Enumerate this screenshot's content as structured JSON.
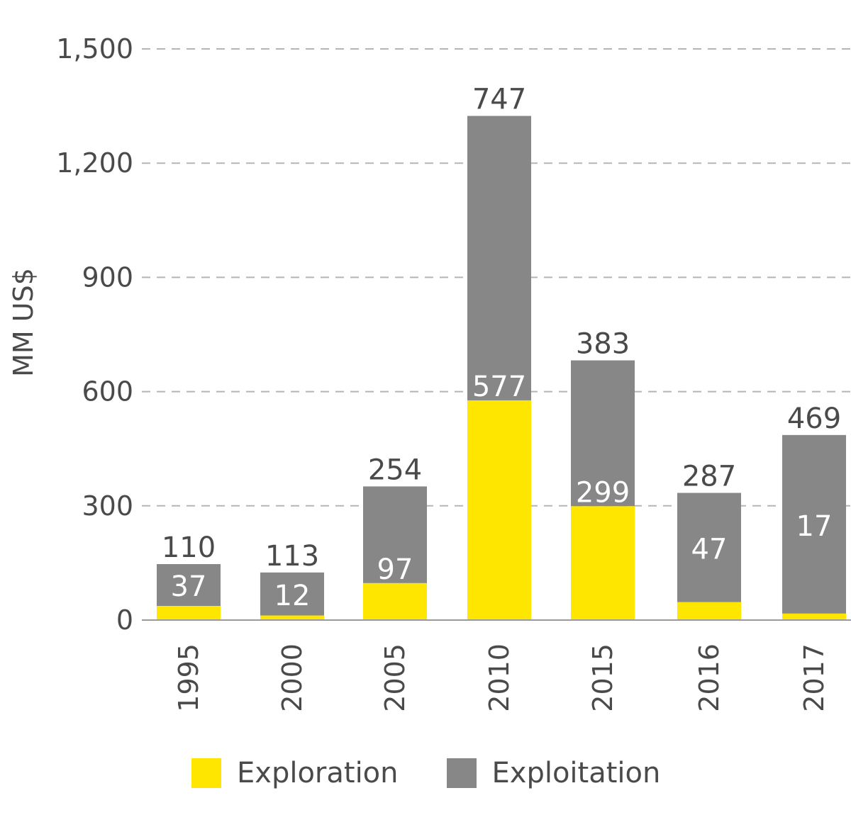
{
  "chart_data": {
    "type": "bar",
    "stacked": true,
    "title": "",
    "xlabel": "",
    "ylabel": "MM US$",
    "ylim": [
      0,
      1500
    ],
    "yticks": [
      0,
      300,
      600,
      900,
      1200,
      1500
    ],
    "ytick_labels": [
      "0",
      "300",
      "600",
      "900",
      "1,200",
      "1,500"
    ],
    "grid": "horizontal dashed",
    "categories": [
      "1995",
      "2000",
      "2005",
      "2010",
      "2015",
      "2016",
      "2017"
    ],
    "series": [
      {
        "name": "Exploration",
        "color": "#FFE600",
        "values": [
          37,
          12,
          97,
          577,
          299,
          47,
          17
        ]
      },
      {
        "name": "Exploitation",
        "color": "#878787",
        "values": [
          110,
          113,
          254,
          747,
          383,
          287,
          469
        ]
      }
    ],
    "legend_position": "bottom"
  }
}
